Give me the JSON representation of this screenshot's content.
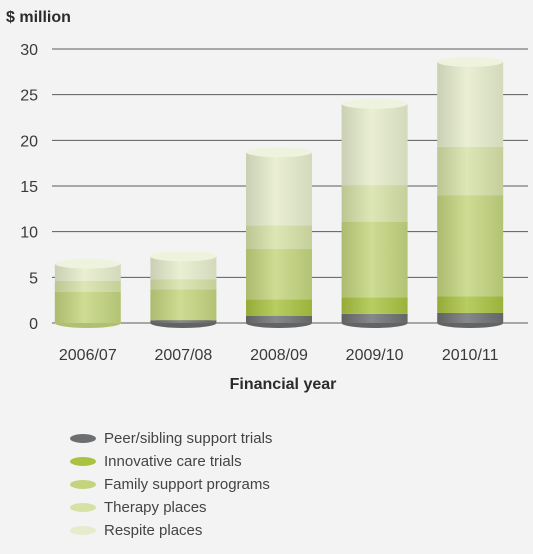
{
  "chart_data": {
    "type": "bar",
    "stacked": true,
    "ylabel": "$ million",
    "xlabel": "Financial year",
    "ylim": [
      0,
      30
    ],
    "yticks": [
      "0",
      "5",
      "10",
      "15",
      "20",
      "25",
      "30"
    ],
    "categories": [
      "2006/07",
      "2007/08",
      "2008/09",
      "2009/10",
      "2010/11"
    ],
    "series": [
      {
        "name": "Peer/sibling support trials",
        "color": "#6d6e70",
        "values": [
          0,
          0.3,
          0.8,
          1.0,
          1.1
        ]
      },
      {
        "name": "Innovative care trials",
        "color": "#a9c23f",
        "values": [
          0,
          0,
          1.8,
          1.8,
          1.8
        ]
      },
      {
        "name": "Family support programs",
        "color": "#c3d47d",
        "values": [
          3.4,
          3.4,
          5.5,
          8.3,
          11.1
        ]
      },
      {
        "name": "Therapy places",
        "color": "#d6e1a6",
        "values": [
          1.2,
          1.1,
          2.6,
          4.0,
          5.3
        ]
      },
      {
        "name": "Respite places",
        "color": "#e5eccb",
        "values": [
          1.9,
          2.5,
          8.0,
          8.9,
          9.3
        ]
      }
    ],
    "legend_position": "bottom",
    "grid": true
  }
}
